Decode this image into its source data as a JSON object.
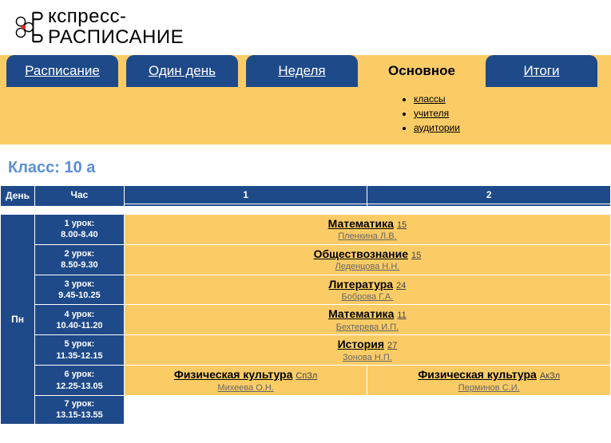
{
  "logo": {
    "line1": "кспресс-",
    "line2": "РАСПИСАНИЕ"
  },
  "tabs": [
    {
      "label": "Расписание",
      "active": false
    },
    {
      "label": "Один день",
      "active": false
    },
    {
      "label": "Неделя",
      "active": false
    },
    {
      "label": "Основное",
      "active": true
    },
    {
      "label": "Итоги",
      "active": false
    }
  ],
  "subnav": [
    "классы",
    "учителя",
    "аудитории"
  ],
  "class_title": "Класс: 10 а",
  "columns": {
    "day": "День",
    "time": "Час",
    "g1": "1",
    "g2": "2"
  },
  "day_label": "Пн",
  "periods": [
    {
      "name": "1 урок:",
      "time": "8.00-8.40"
    },
    {
      "name": "2 урок:",
      "time": "8.50-9.30"
    },
    {
      "name": "3 урок:",
      "time": "9.45-10.25"
    },
    {
      "name": "4 урок:",
      "time": "10.40-11.20"
    },
    {
      "name": "5 урок:",
      "time": "11.35-12.15"
    },
    {
      "name": "6 урок:",
      "time": "12.25-13.05"
    },
    {
      "name": "7 урок:",
      "time": "13.15-13.55"
    }
  ],
  "rows": [
    {
      "span": true,
      "subject": "Математика",
      "room": "15",
      "teacher": "Пленкина Л.В."
    },
    {
      "span": true,
      "subject": "Обществознание",
      "room": "15",
      "teacher": "Леденцова Н.Н."
    },
    {
      "span": true,
      "subject": "Литература",
      "room": "24",
      "teacher": "Боброва Г.А."
    },
    {
      "span": true,
      "subject": "Математика",
      "room": "11",
      "teacher": "Бехтерева И.П."
    },
    {
      "span": true,
      "subject": "История",
      "room": "27",
      "teacher": "Зонова Н.П."
    },
    {
      "span": false,
      "g1": {
        "subject": "Физическая культура",
        "room": "СпЗл",
        "teacher": "Михеева О.Н."
      },
      "g2": {
        "subject": "Физическая культура",
        "room": "АкЗл",
        "teacher": "Перминов С.И."
      }
    },
    {
      "empty": true
    }
  ]
}
